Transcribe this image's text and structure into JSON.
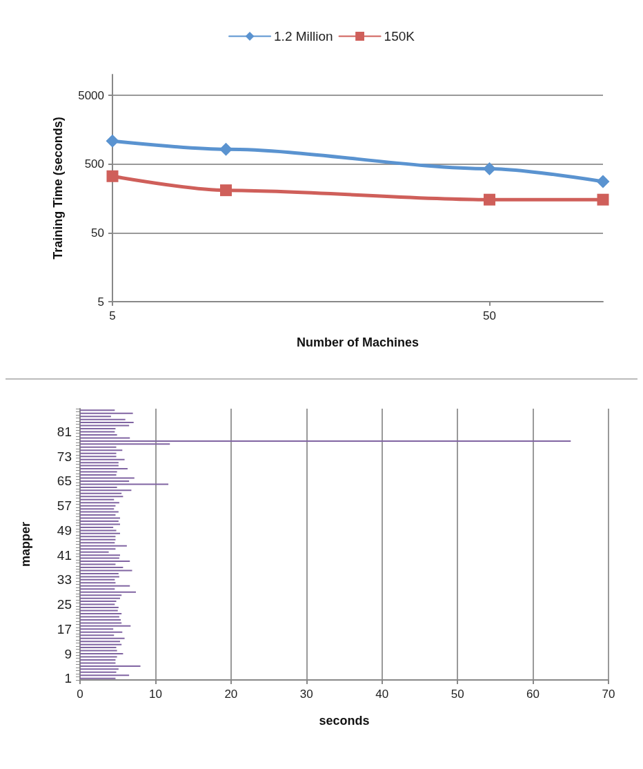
{
  "chart_data": [
    {
      "type": "line",
      "xlabel": "Number of Machines",
      "ylabel": "Training Time (seconds)",
      "x": [
        5,
        10,
        50,
        100
      ],
      "log": "xy",
      "xlim": [
        5,
        100
      ],
      "xticks": [
        5,
        50
      ],
      "ylim": [
        5,
        10000
      ],
      "yticks": [
        5,
        50,
        500,
        5000
      ],
      "grid": "y",
      "legend": "top",
      "line_style": "solid",
      "series": [
        {
          "name": "1.2 Million",
          "color": "#5a93d0",
          "marker": "diamond",
          "values": [
            1080,
            820,
            427,
            279
          ]
        },
        {
          "name": "150K",
          "color": "#cf5f5a",
          "marker": "square",
          "values": [
            333,
            208,
            152,
            152
          ]
        }
      ]
    },
    {
      "type": "bar",
      "orientation": "horizontal",
      "xlabel": "seconds",
      "ylabel": "mapper",
      "xlim": [
        0,
        70
      ],
      "xticks": [
        0,
        10,
        20,
        30,
        40,
        50,
        60,
        70
      ],
      "grid": "x",
      "legend": false,
      "categories": [
        null,
        null,
        null,
        null,
        null,
        null,
        null,
        "81",
        null,
        null,
        null,
        null,
        null,
        null,
        null,
        "73",
        null,
        null,
        null,
        null,
        null,
        null,
        null,
        "65",
        null,
        null,
        null,
        null,
        null,
        null,
        null,
        "57",
        null,
        null,
        null,
        null,
        null,
        null,
        null,
        "49",
        null,
        null,
        null,
        null,
        null,
        null,
        null,
        "41",
        null,
        null,
        null,
        null,
        null,
        null,
        null,
        "33",
        null,
        null,
        null,
        null,
        null,
        null,
        null,
        "25",
        null,
        null,
        null,
        null,
        null,
        null,
        null,
        "17",
        null,
        null,
        null,
        null,
        null,
        null,
        null,
        "9",
        null,
        null,
        null,
        null,
        null,
        null,
        null,
        "1"
      ],
      "series": [
        {
          "color": "#8064a2",
          "values": [
            4.6,
            7.0,
            4.1,
            6.0,
            7.1,
            6.5,
            4.7,
            4.6,
            4.9,
            6.6,
            65,
            11.9,
            4.8,
            5.6,
            4.8,
            4.8,
            5.9,
            5.1,
            5.1,
            6.3,
            4.9,
            4.8,
            7.2,
            6.5,
            11.7,
            4.9,
            6.8,
            5.5,
            5.7,
            4.5,
            5.2,
            4.7,
            4.5,
            5.1,
            4.7,
            5.3,
            5.1,
            5.3,
            4.4,
            4.8,
            5.3,
            4.7,
            4.7,
            4.6,
            6.2,
            4.7,
            3.8,
            5.3,
            5.2,
            6.6,
            4.7,
            5.7,
            6.9,
            5.1,
            5.2,
            4.6,
            4.7,
            6.6,
            4.6,
            7.4,
            5.5,
            5.3,
            4.8,
            4.6,
            5.1,
            5.0,
            5.5,
            5.2,
            5.4,
            5.5,
            6.7,
            4.4,
            5.6,
            4.5,
            5.9,
            5.3,
            5.5,
            4.8,
            4.9,
            5.7,
            4.9,
            4.7,
            4.7,
            8.0,
            5.1,
            4.8,
            6.5,
            4.7
          ]
        }
      ]
    }
  ]
}
